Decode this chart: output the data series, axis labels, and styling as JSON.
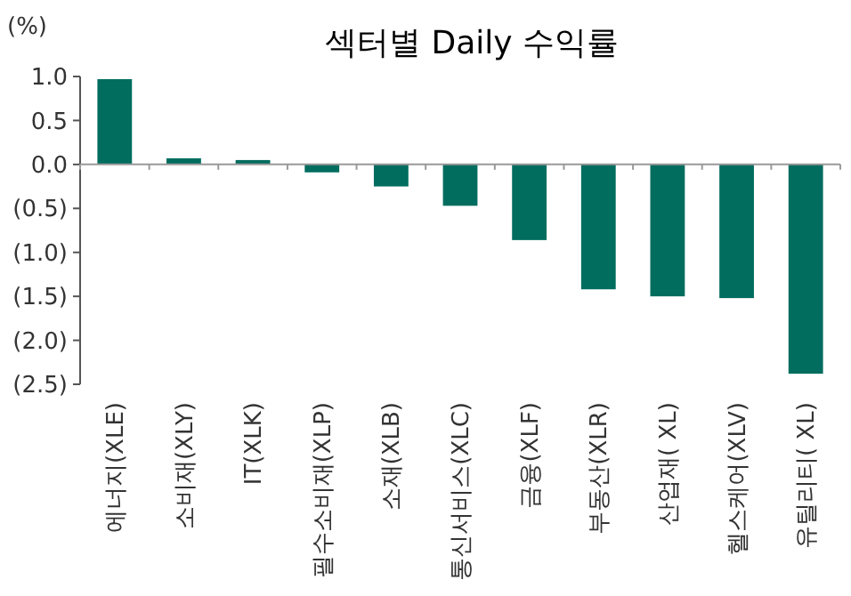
{
  "chart_data": {
    "type": "bar",
    "title": "섹터별 Daily 수익률",
    "ylabel": "(%)",
    "categories": [
      "에너지(XLE)",
      "소비재(XLY)",
      "IT(XLK)",
      "필수소비재(XLP)",
      "소재(XLB)",
      "통신서비스(XLC)",
      "금융(XLF)",
      "부동산(XLR)",
      "산업재( XL)",
      "헬스케어(XLV)",
      "유틸리티( XL)"
    ],
    "values": [
      0.97,
      0.07,
      0.05,
      -0.09,
      -0.25,
      -0.47,
      -0.86,
      -1.42,
      -1.5,
      -1.52,
      -2.38
    ],
    "color": "#006d5f",
    "ylim": [
      -2.5,
      1.0
    ],
    "yticks": [
      {
        "value": 1.0,
        "label": "1.0"
      },
      {
        "value": 0.5,
        "label": "0.5"
      },
      {
        "value": 0,
        "label": "0.0"
      },
      {
        "value": -0.5,
        "label": "(0.5)"
      },
      {
        "value": -1.0,
        "label": "(1.0)"
      },
      {
        "value": -1.5,
        "label": "(1.5)"
      },
      {
        "value": -2.0,
        "label": "(2.0)"
      },
      {
        "value": -2.5,
        "label": "(2.5)"
      }
    ]
  }
}
